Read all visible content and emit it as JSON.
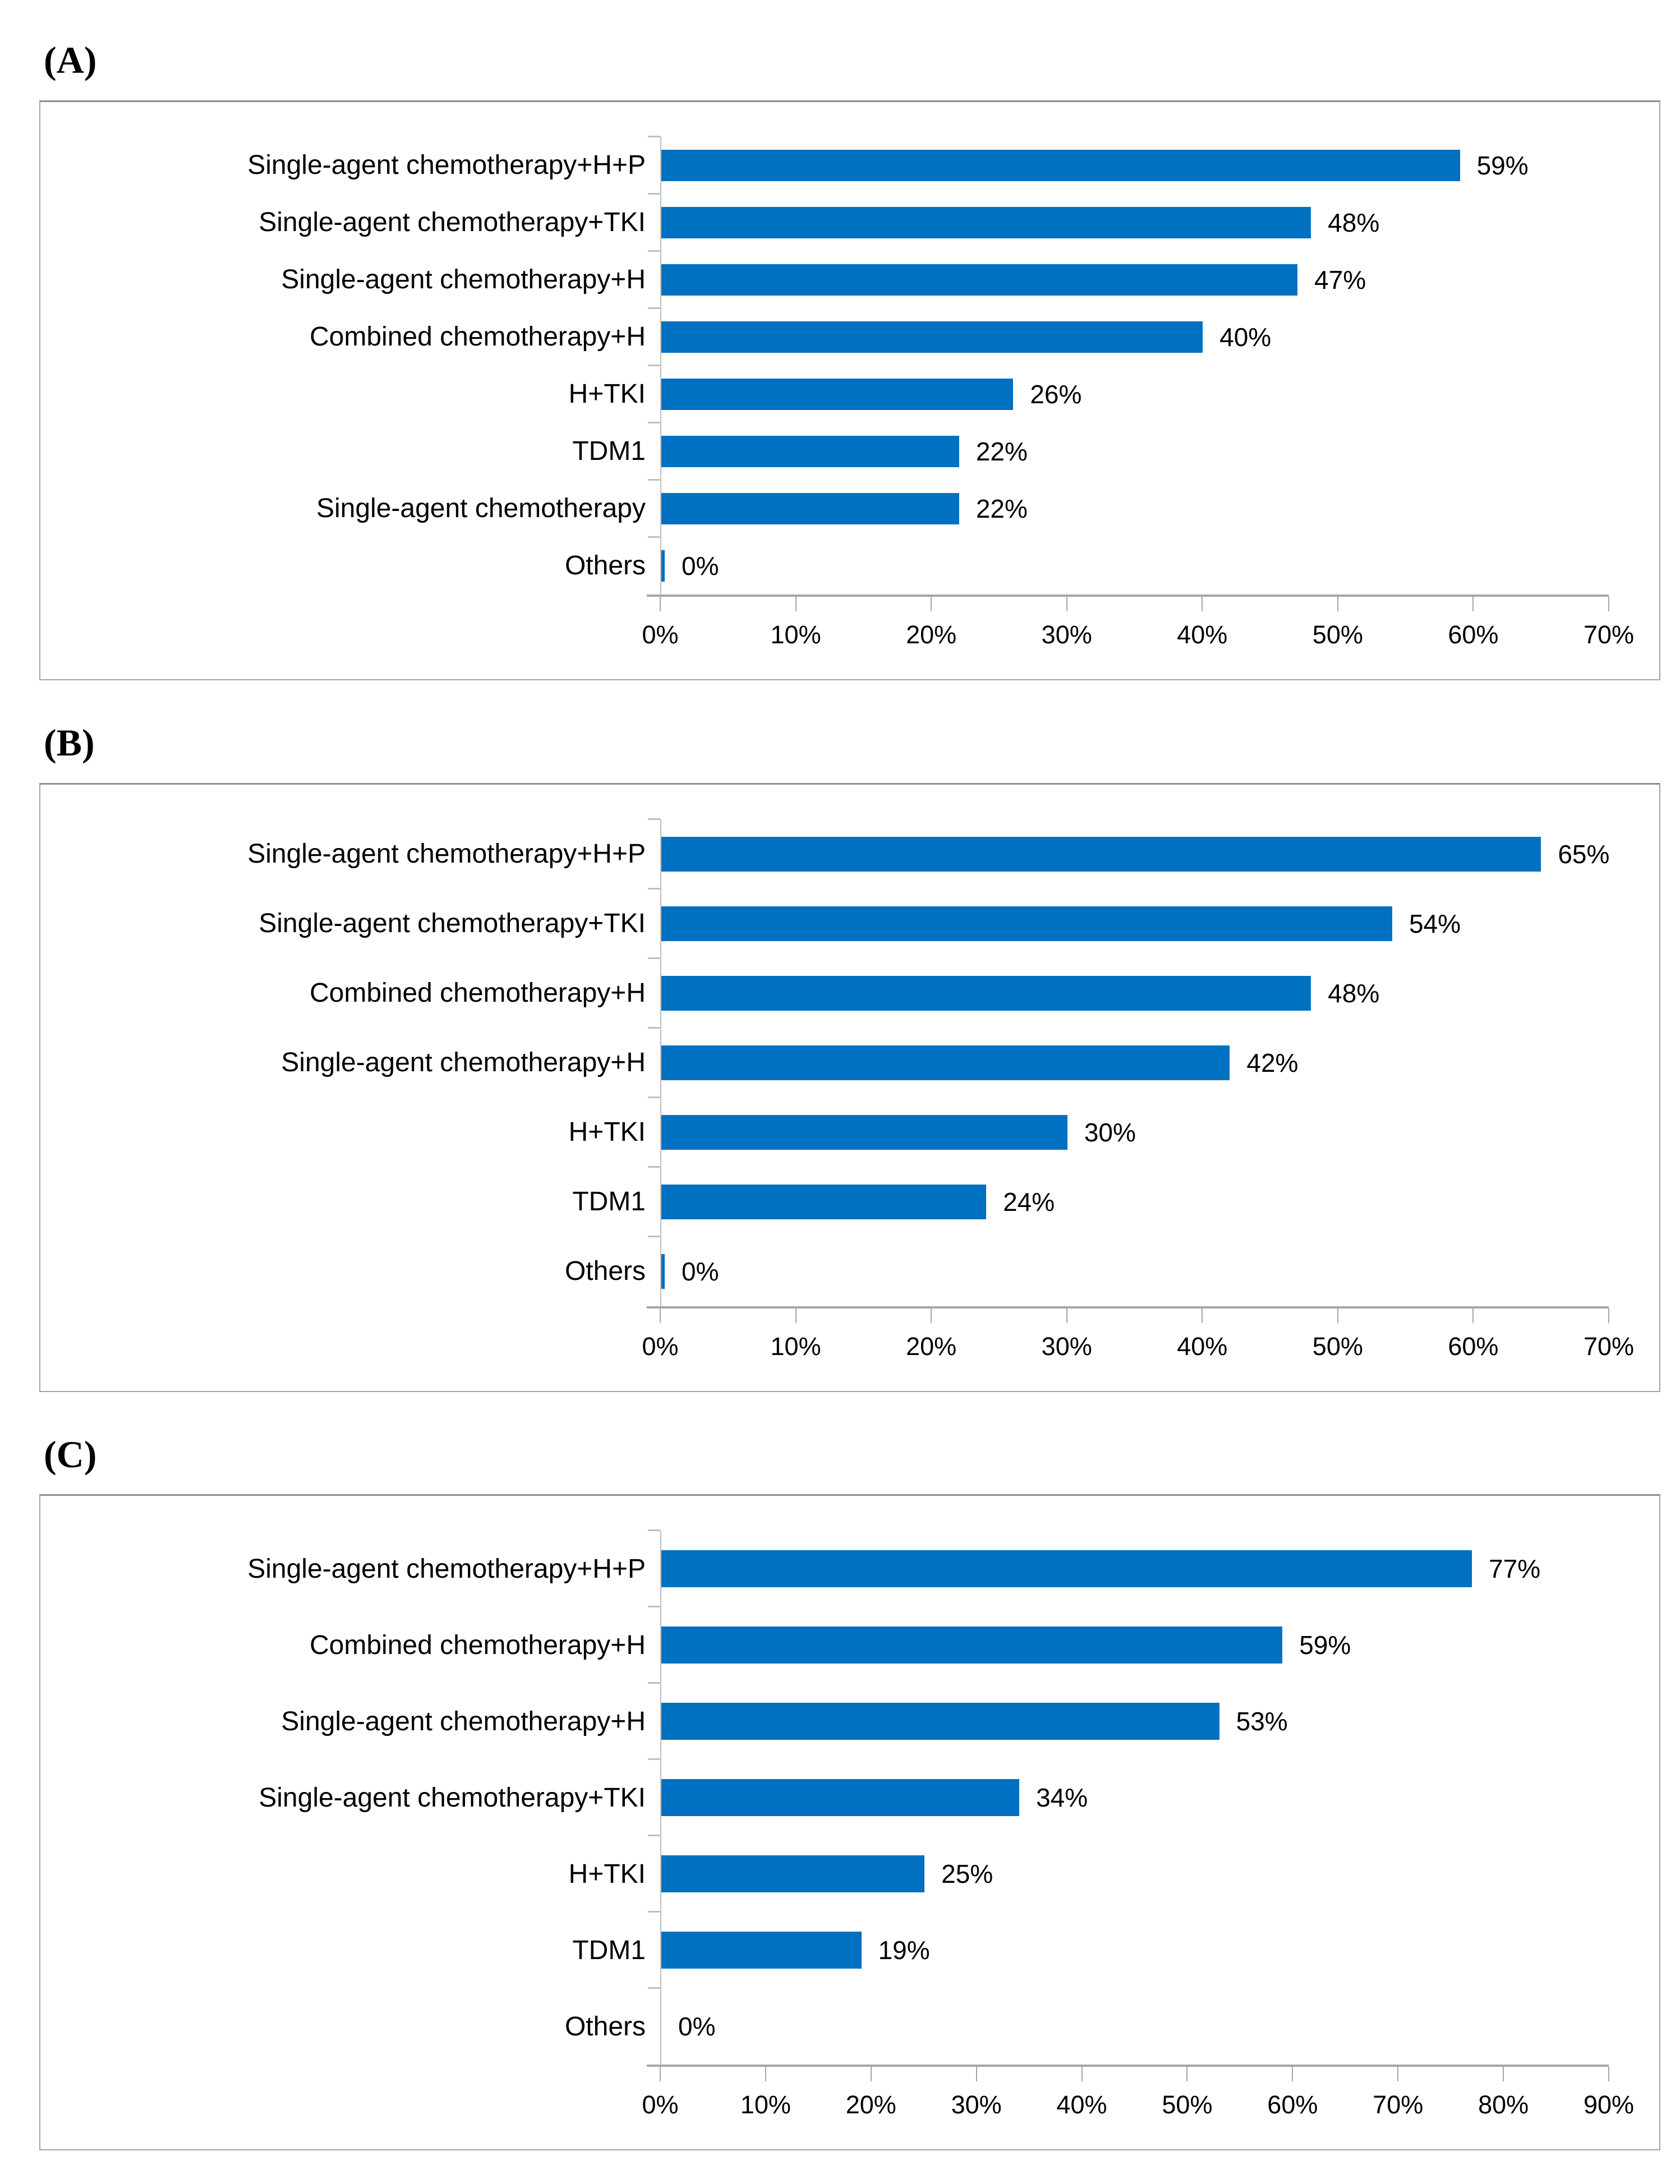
{
  "figure": {
    "background": "#FFFFFF",
    "bar_color": "#0070C0",
    "axis_color": "#A6A6A6",
    "category_axis_color": "#BFBFBF"
  },
  "chart_data": [
    {
      "type": "bar",
      "panel": "(A)",
      "orientation": "horizontal",
      "bar_color": "#0070C0",
      "categories": [
        "Single-agent chemotherapy+H+P",
        "Single-agent chemotherapy+TKI",
        "Single-agent chemotherapy+H",
        "Combined chemotherapy+H",
        "H+TKI",
        "TDM1",
        "Single-agent chemotherapy",
        "Others"
      ],
      "values": [
        59,
        48,
        47,
        40,
        26,
        22,
        22,
        0
      ],
      "data_labels": [
        "59%",
        "48%",
        "47%",
        "40%",
        "26%",
        "22%",
        "22%",
        "0%"
      ],
      "xlim": [
        0,
        70
      ],
      "tick_step": 10,
      "x_tick_labels": [
        "0%",
        "10%",
        "20%",
        "30%",
        "40%",
        "50%",
        "60%",
        "70%"
      ],
      "xlabel": "",
      "ylabel": "",
      "title": "",
      "grid": false,
      "legend": false,
      "zero_value_sliver": true
    },
    {
      "type": "bar",
      "panel": "(B)",
      "orientation": "horizontal",
      "bar_color": "#0070C0",
      "categories": [
        "Single-agent chemotherapy+H+P",
        "Single-agent chemotherapy+TKI",
        "Combined chemotherapy+H",
        "Single-agent chemotherapy+H",
        "H+TKI",
        "TDM1",
        "Others"
      ],
      "values": [
        65,
        54,
        48,
        42,
        30,
        24,
        0
      ],
      "data_labels": [
        "65%",
        "54%",
        "48%",
        "42%",
        "30%",
        "24%",
        "0%"
      ],
      "xlim": [
        0,
        70
      ],
      "tick_step": 10,
      "x_tick_labels": [
        "0%",
        "10%",
        "20%",
        "30%",
        "40%",
        "50%",
        "60%",
        "70%"
      ],
      "xlabel": "",
      "ylabel": "",
      "title": "",
      "grid": false,
      "legend": false,
      "zero_value_sliver": true
    },
    {
      "type": "bar",
      "panel": "(C)",
      "orientation": "horizontal",
      "bar_color": "#0070C0",
      "categories": [
        "Single-agent chemotherapy+H+P",
        "Combined chemotherapy+H",
        "Single-agent chemotherapy+H",
        "Single-agent chemotherapy+TKI",
        "H+TKI",
        "TDM1",
        "Others"
      ],
      "values": [
        77,
        59,
        53,
        34,
        25,
        19,
        0
      ],
      "data_labels": [
        "77%",
        "59%",
        "53%",
        "34%",
        "25%",
        "19%",
        "0%"
      ],
      "xlim": [
        0,
        90
      ],
      "tick_step": 10,
      "x_tick_labels": [
        "0%",
        "10%",
        "20%",
        "30%",
        "40%",
        "50%",
        "60%",
        "70%",
        "80%",
        "90%"
      ],
      "xlabel": "",
      "ylabel": "",
      "title": "",
      "grid": false,
      "legend": false,
      "zero_value_sliver": false
    }
  ]
}
